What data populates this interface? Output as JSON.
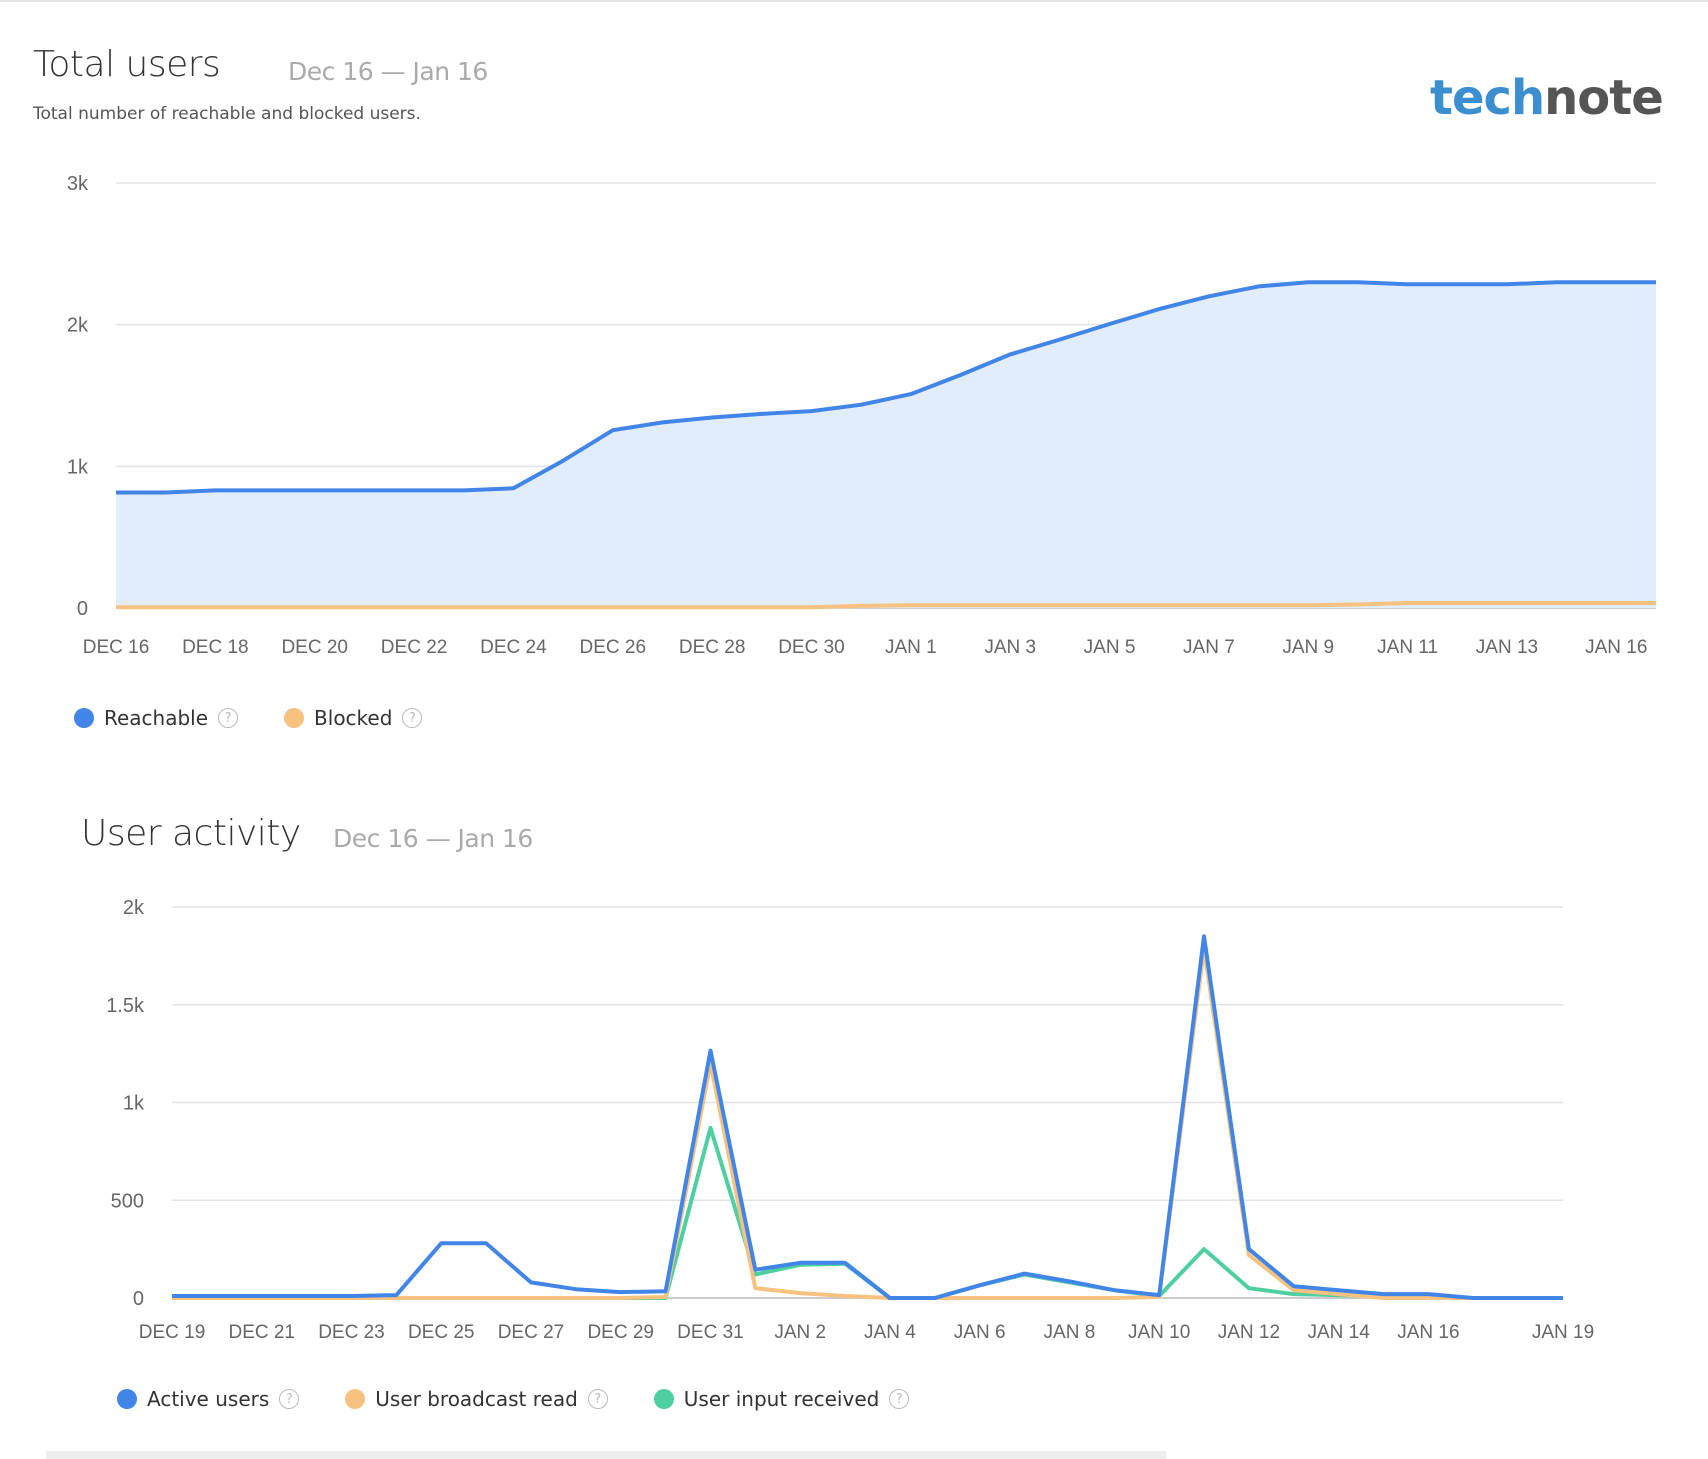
{
  "header": {
    "title": "Total users",
    "range": "Dec 16 — Jan 16",
    "subtitle": "Total number of reachable and blocked users.",
    "logo": {
      "part1": "tech",
      "part2": "note"
    }
  },
  "activity_header": {
    "title": "User activity",
    "range": "Dec 16 — Jan 16"
  },
  "help_glyph": "?",
  "chart_data": [
    {
      "type": "area",
      "title": "Total users",
      "ylim": [
        0,
        3000
      ],
      "yticks": [
        {
          "v": 0,
          "label": "0"
        },
        {
          "v": 1000,
          "label": "1k"
        },
        {
          "v": 2000,
          "label": "2k"
        },
        {
          "v": 3000,
          "label": "3k"
        }
      ],
      "xtick_labels": [
        {
          "i": 0,
          "label": "DEC 16"
        },
        {
          "i": 2,
          "label": "DEC 18"
        },
        {
          "i": 4,
          "label": "DEC 20"
        },
        {
          "i": 6,
          "label": "DEC 22"
        },
        {
          "i": 8,
          "label": "DEC 24"
        },
        {
          "i": 10,
          "label": "DEC 26"
        },
        {
          "i": 12,
          "label": "DEC 28"
        },
        {
          "i": 14,
          "label": "DEC 30"
        },
        {
          "i": 16,
          "label": "JAN 1"
        },
        {
          "i": 18,
          "label": "JAN 3"
        },
        {
          "i": 20,
          "label": "JAN 5"
        },
        {
          "i": 22,
          "label": "JAN 7"
        },
        {
          "i": 24,
          "label": "JAN 9"
        },
        {
          "i": 26,
          "label": "JAN 11"
        },
        {
          "i": 28,
          "label": "JAN 13"
        },
        {
          "i": 30.2,
          "label": "JAN 16"
        }
      ],
      "x_count": 32,
      "grid": true,
      "legend_position": "bottom-left",
      "series": [
        {
          "name": "Reachable",
          "color": "#4285e8",
          "fill": "#e2edfb",
          "values": [
            815,
            815,
            830,
            830,
            830,
            830,
            830,
            830,
            845,
            1040,
            1255,
            1310,
            1345,
            1370,
            1390,
            1435,
            1510,
            1645,
            1790,
            1895,
            2005,
            2110,
            2200,
            2270,
            2300,
            2300,
            2285,
            2285,
            2285,
            2300,
            2300,
            2300
          ]
        },
        {
          "name": "Blocked",
          "color": "#f7c27f",
          "values": [
            5,
            5,
            5,
            5,
            5,
            5,
            5,
            5,
            5,
            5,
            5,
            5,
            5,
            5,
            5,
            15,
            20,
            20,
            20,
            20,
            20,
            20,
            20,
            20,
            20,
            25,
            35,
            35,
            35,
            35,
            35,
            35
          ]
        }
      ]
    },
    {
      "type": "line",
      "title": "User activity",
      "ylim": [
        0,
        2000
      ],
      "yticks": [
        {
          "v": 0,
          "label": "0"
        },
        {
          "v": 500,
          "label": "500"
        },
        {
          "v": 1000,
          "label": "1k"
        },
        {
          "v": 1500,
          "label": "1.5k"
        },
        {
          "v": 2000,
          "label": "2k"
        }
      ],
      "xtick_labels": [
        {
          "i": 0,
          "label": "DEC 19"
        },
        {
          "i": 2,
          "label": "DEC 21"
        },
        {
          "i": 4,
          "label": "DEC 23"
        },
        {
          "i": 6,
          "label": "DEC 25"
        },
        {
          "i": 8,
          "label": "DEC 27"
        },
        {
          "i": 10,
          "label": "DEC 29"
        },
        {
          "i": 12,
          "label": "DEC 31"
        },
        {
          "i": 14,
          "label": "JAN 2"
        },
        {
          "i": 16,
          "label": "JAN 4"
        },
        {
          "i": 18,
          "label": "JAN 6"
        },
        {
          "i": 20,
          "label": "JAN 8"
        },
        {
          "i": 22,
          "label": "JAN 10"
        },
        {
          "i": 24,
          "label": "JAN 12"
        },
        {
          "i": 26,
          "label": "JAN 14"
        },
        {
          "i": 28,
          "label": "JAN 16"
        },
        {
          "i": 31,
          "label": "JAN 19"
        }
      ],
      "x_count": 32,
      "grid": true,
      "legend_position": "bottom-left",
      "series": [
        {
          "name": "User input received",
          "color": "#4ecfa0",
          "values": [
            0,
            0,
            0,
            0,
            0,
            0,
            0,
            0,
            0,
            0,
            0,
            0,
            870,
            120,
            170,
            175,
            0,
            0,
            65,
            120,
            80,
            40,
            10,
            250,
            50,
            20,
            15,
            10,
            0,
            0,
            0,
            0
          ]
        },
        {
          "name": "User broadcast read",
          "color": "#f7c27f",
          "values": [
            0,
            0,
            0,
            0,
            0,
            0,
            0,
            0,
            0,
            0,
            0,
            5,
            1200,
            50,
            25,
            10,
            0,
            0,
            0,
            0,
            0,
            0,
            5,
            1790,
            220,
            40,
            20,
            0,
            0,
            0,
            0,
            0
          ]
        },
        {
          "name": "Active users",
          "color": "#4285e8",
          "values": [
            10,
            10,
            10,
            10,
            10,
            15,
            280,
            280,
            80,
            45,
            30,
            35,
            1265,
            145,
            180,
            180,
            0,
            0,
            65,
            125,
            85,
            40,
            15,
            1850,
            250,
            60,
            40,
            20,
            20,
            0,
            0,
            0
          ]
        }
      ],
      "legend_order": [
        "Active users",
        "User broadcast read",
        "User input received"
      ]
    }
  ]
}
